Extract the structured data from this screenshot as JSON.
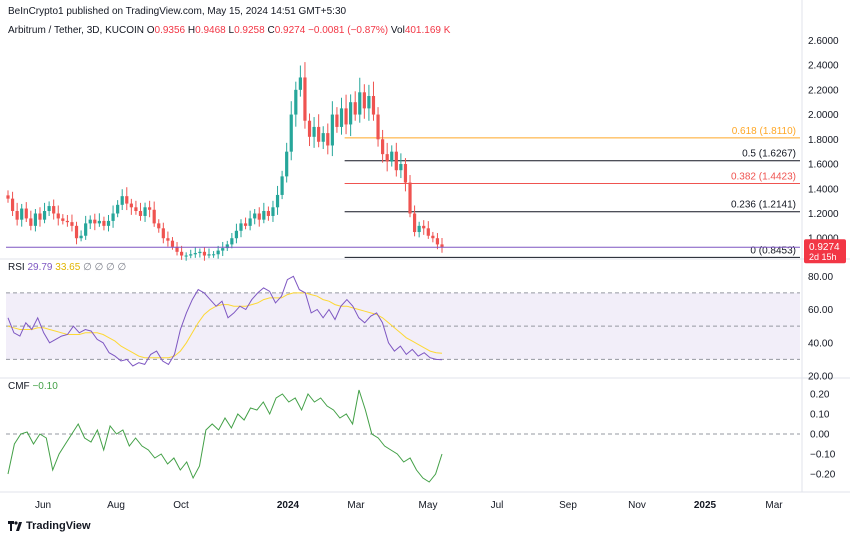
{
  "header": {
    "publisher_line": "BeInCrypto1 published on TradingView.com, May 15, 2024 14:51 GMT+5:30",
    "symbol": "Arbitrum / Tether, 3D, KUCOIN",
    "o_label": "O",
    "o_value": "0.9356",
    "h_label": "H",
    "h_value": "0.9468",
    "l_label": "L",
    "l_value": "0.9258",
    "c_label": "C",
    "c_value": "0.9274",
    "change": "−0.0081 (−0.87%)",
    "vol_label": "Vol",
    "vol_value": "401.169 K"
  },
  "price_tag": {
    "value": "0.9274",
    "countdown": "2d 15h"
  },
  "rsi_header": {
    "label": "RSI",
    "value1": "29.79",
    "value2": "33.65",
    "symbols": "∅ ∅ ∅ ∅"
  },
  "cmf_header": {
    "label": "CMF",
    "value": "−0.10"
  },
  "footer": {
    "brand": "TradingView"
  },
  "colors": {
    "up": "#26a69a",
    "down": "#ef5350",
    "rsi": "#7e57c2",
    "rsi_ma": "#fdd835",
    "cmf": "#43a047",
    "fib618": "#ffa726",
    "fib382": "#ef5350",
    "fib_other": "#131722"
  },
  "chart_data": [
    {
      "type": "candlestick",
      "title": "Arbitrum / Tether, 3D, KUCOIN",
      "ylim": [
        0.84,
        2.7
      ],
      "y_ticks": [
        "2.6000",
        "2.4000",
        "2.2000",
        "2.0000",
        "1.8000",
        "1.6000",
        "1.4000",
        "1.2000",
        "1.0000"
      ],
      "x_ticks": [
        "Jun",
        "Aug",
        "Oct",
        "2024",
        "Mar",
        "May",
        "Jul",
        "Sep",
        "Nov",
        "2025",
        "Mar"
      ],
      "fib_levels": [
        {
          "label": "0.618 (1.8110)",
          "value": 1.811
        },
        {
          "label": "0.5 (1.6267)",
          "value": 1.6267
        },
        {
          "label": "0.382 (1.4423)",
          "value": 1.4423
        },
        {
          "label": "0.236 (1.2141)",
          "value": 1.2141
        },
        {
          "label": "0 (0.8453)",
          "value": 0.8453
        }
      ],
      "last_close": 0.9274,
      "closes": [
        1.32,
        1.22,
        1.15,
        1.24,
        1.16,
        1.1,
        1.2,
        1.15,
        1.22,
        1.26,
        1.2,
        1.16,
        1.14,
        1.13,
        1.1,
        1.0,
        1.02,
        1.12,
        1.15,
        1.12,
        1.14,
        1.1,
        1.14,
        1.2,
        1.27,
        1.34,
        1.28,
        1.25,
        1.22,
        1.18,
        1.25,
        1.23,
        1.12,
        1.08,
        1.0,
        0.98,
        0.93,
        0.89,
        0.86,
        0.86,
        0.87,
        0.88,
        0.89,
        0.86,
        0.87,
        0.87,
        0.9,
        0.92,
        0.95,
        1.0,
        1.06,
        1.12,
        1.1,
        1.16,
        1.2,
        1.15,
        1.22,
        1.18,
        1.25,
        1.35,
        1.5,
        1.7,
        2.0,
        2.2,
        2.3,
        1.95,
        1.82,
        1.9,
        1.78,
        1.85,
        1.75,
        2.0,
        1.9,
        2.05,
        1.92,
        2.1,
        2.0,
        2.18,
        2.05,
        2.15,
        2.0,
        1.8,
        1.68,
        1.62,
        1.7,
        1.55,
        1.6,
        1.45,
        1.2,
        1.05,
        1.1,
        1.08,
        1.02,
        1.0,
        0.95,
        0.9274
      ]
    },
    {
      "type": "line",
      "title": "RSI",
      "ylim": [
        20,
        85
      ],
      "y_ticks": [
        "80.00",
        "60.00",
        "40.00",
        "20.00"
      ],
      "band": [
        30,
        70
      ],
      "mid": 50,
      "series": [
        {
          "name": "29.79",
          "values": [
            55,
            46,
            44,
            52,
            48,
            55,
            46,
            40,
            42,
            44,
            45,
            50,
            46,
            48,
            47,
            42,
            40,
            34,
            32,
            29,
            30,
            26,
            28,
            27,
            33,
            35,
            29,
            27,
            33,
            48,
            58,
            66,
            72,
            70,
            66,
            62,
            65,
            55,
            58,
            62,
            60,
            66,
            70,
            73,
            71,
            64,
            68,
            78,
            80,
            72,
            70,
            58,
            60,
            55,
            60,
            54,
            62,
            66,
            62,
            55,
            52,
            56,
            58,
            52,
            40,
            35,
            38,
            33,
            36,
            32,
            34,
            31,
            30,
            29.79
          ]
        },
        {
          "name": "33.65",
          "values": [
            50,
            49,
            48,
            48,
            48,
            49,
            49,
            48,
            47,
            46,
            45,
            45,
            45,
            46,
            46,
            46,
            45,
            43,
            41,
            38,
            36,
            34,
            32,
            31,
            31,
            31,
            31,
            31,
            32,
            35,
            40,
            46,
            52,
            57,
            60,
            62,
            63,
            63,
            62,
            62,
            62,
            63,
            64,
            66,
            67,
            67,
            67,
            69,
            70,
            70,
            70,
            69,
            68,
            66,
            65,
            63,
            62,
            62,
            61,
            60,
            59,
            58,
            57,
            55,
            52,
            49,
            46,
            43,
            41,
            39,
            37,
            35,
            34,
            33.65
          ]
        }
      ]
    },
    {
      "type": "line",
      "title": "CMF",
      "ylim": [
        -0.28,
        0.25
      ],
      "y_ticks": [
        "0.20",
        "0.10",
        "0.00",
        "-0.10",
        "-0.20"
      ],
      "zero_line": 0,
      "series": [
        {
          "name": "−0.10",
          "values": [
            -0.2,
            -0.05,
            0.0,
            0.01,
            -0.05,
            0.0,
            -0.02,
            -0.18,
            -0.1,
            -0.05,
            0.0,
            0.05,
            -0.02,
            -0.04,
            0.02,
            -0.08,
            0.04,
            0.0,
            0.02,
            -0.06,
            -0.02,
            -0.06,
            -0.08,
            -0.12,
            -0.1,
            -0.15,
            -0.12,
            -0.18,
            -0.14,
            -0.22,
            -0.16,
            0.02,
            0.05,
            0.02,
            0.08,
            0.03,
            0.1,
            0.07,
            0.13,
            0.12,
            0.16,
            0.1,
            0.18,
            0.2,
            0.16,
            0.18,
            0.12,
            0.2,
            0.16,
            0.18,
            0.14,
            0.12,
            0.08,
            0.1,
            0.05,
            0.22,
            0.12,
            0.0,
            -0.02,
            -0.06,
            -0.08,
            -0.1,
            -0.14,
            -0.12,
            -0.18,
            -0.22,
            -0.24,
            -0.2,
            -0.1
          ]
        }
      ]
    }
  ]
}
